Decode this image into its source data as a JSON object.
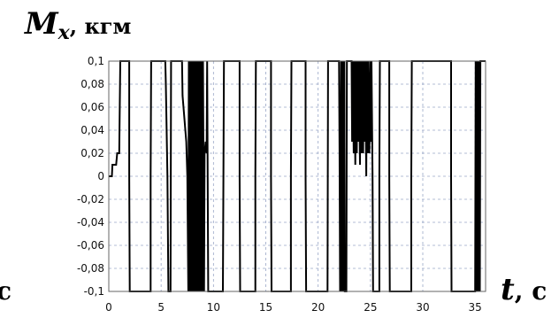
{
  "chart_data": {
    "type": "line",
    "title": "",
    "ylabel_symbol": "M",
    "ylabel_subscript": "x",
    "ylabel_unit": ", кгм",
    "xlabel_symbol": "t",
    "xlabel_unit": ", с",
    "left_cropped_text": "с",
    "xlim": [
      0,
      36
    ],
    "ylim": [
      -0.1,
      0.1
    ],
    "grid": true,
    "x_ticks": [
      0,
      5,
      10,
      15,
      20,
      25,
      30,
      35
    ],
    "x_tick_labels": [
      "0",
      "5",
      "10",
      "15",
      "20",
      "25",
      "30",
      "35"
    ],
    "y_ticks": [
      0.1,
      0.08,
      0.06,
      0.04,
      0.02,
      0,
      -0.02,
      -0.04,
      -0.06,
      -0.08,
      -0.1
    ],
    "y_tick_labels": [
      "0,1",
      "0,08",
      "0,06",
      "0,04",
      "0,02",
      "0",
      "-0,02",
      "-0,04",
      "-0,06",
      "-0,08",
      "-0,1"
    ],
    "series": [
      {
        "color": "#000000",
        "points": [
          [
            0,
            0
          ],
          [
            0.3,
            0
          ],
          [
            0.35,
            0.01
          ],
          [
            0.7,
            0.01
          ],
          [
            0.8,
            0.02
          ],
          [
            0.9,
            0.02
          ],
          [
            1.0,
            0.02
          ],
          [
            1.1,
            0.1
          ],
          [
            1.95,
            0.1
          ],
          [
            1.95,
            0
          ],
          [
            2.0,
            -0.1
          ],
          [
            4.0,
            -0.1
          ],
          [
            4.0,
            0
          ],
          [
            4.05,
            0.1
          ],
          [
            5.4,
            0.1
          ],
          [
            5.45,
            0.08
          ],
          [
            5.6,
            0
          ],
          [
            5.7,
            -0.1
          ],
          [
            5.9,
            -0.1
          ],
          [
            5.95,
            0.1
          ],
          [
            7.0,
            0.1
          ],
          [
            7.05,
            0.07
          ],
          [
            7.4,
            0.03
          ],
          [
            7.5,
            0
          ],
          [
            7.6,
            -0.1
          ],
          [
            7.65,
            0.1
          ],
          [
            7.75,
            -0.1
          ],
          [
            7.8,
            0.1
          ],
          [
            7.9,
            -0.1
          ],
          [
            7.95,
            0.1
          ],
          [
            8.05,
            -0.1
          ],
          [
            8.1,
            0.1
          ],
          [
            8.2,
            -0.1
          ],
          [
            8.25,
            0.1
          ],
          [
            8.35,
            -0.1
          ],
          [
            8.4,
            0.1
          ],
          [
            8.5,
            -0.1
          ],
          [
            8.55,
            0.1
          ],
          [
            8.65,
            -0.1
          ],
          [
            8.7,
            0.1
          ],
          [
            8.8,
            -0.1
          ],
          [
            8.85,
            0.1
          ],
          [
            8.95,
            -0.1
          ],
          [
            9.0,
            0.1
          ],
          [
            9.1,
            -0.1
          ],
          [
            9.15,
            0.02
          ],
          [
            9.25,
            0.03
          ],
          [
            9.35,
            0.02
          ],
          [
            9.4,
            0.1
          ],
          [
            9.45,
            0
          ],
          [
            9.5,
            -0.1
          ],
          [
            10.9,
            -0.1
          ],
          [
            11.0,
            0.1
          ],
          [
            12.5,
            0.1
          ],
          [
            12.5,
            0
          ],
          [
            12.55,
            -0.1
          ],
          [
            14.0,
            -0.1
          ],
          [
            14.0,
            0
          ],
          [
            14.05,
            0.1
          ],
          [
            15.5,
            0.1
          ],
          [
            15.5,
            0
          ],
          [
            15.55,
            -0.1
          ],
          [
            17.4,
            -0.1
          ],
          [
            17.4,
            0
          ],
          [
            17.45,
            0.1
          ],
          [
            18.8,
            0.1
          ],
          [
            18.8,
            0
          ],
          [
            18.85,
            -0.1
          ],
          [
            20.9,
            -0.1
          ],
          [
            20.95,
            0.1
          ],
          [
            22.0,
            0.1
          ],
          [
            22.05,
            0.02
          ],
          [
            22.1,
            -0.1
          ],
          [
            22.2,
            0.1
          ],
          [
            22.25,
            -0.1
          ],
          [
            22.35,
            0.1
          ],
          [
            22.4,
            -0.1
          ],
          [
            22.5,
            0.1
          ],
          [
            22.55,
            -0.1
          ],
          [
            22.7,
            -0.1
          ],
          [
            22.75,
            0.1
          ],
          [
            23.2,
            0.1
          ],
          [
            23.25,
            0.03
          ],
          [
            23.3,
            0.1
          ],
          [
            23.4,
            0.02
          ],
          [
            23.45,
            0.1
          ],
          [
            23.55,
            0.01
          ],
          [
            23.6,
            0.1
          ],
          [
            23.7,
            0.02
          ],
          [
            23.75,
            0.1
          ],
          [
            23.85,
            0.03
          ],
          [
            23.9,
            0.1
          ],
          [
            24.0,
            0.01
          ],
          [
            24.05,
            0.1
          ],
          [
            24.15,
            0.02
          ],
          [
            24.2,
            0.1
          ],
          [
            24.3,
            0.02
          ],
          [
            24.35,
            0.1
          ],
          [
            24.45,
            0.03
          ],
          [
            24.5,
            0.1
          ],
          [
            24.6,
            0.0
          ],
          [
            24.65,
            0.1
          ],
          [
            24.75,
            0.02
          ],
          [
            24.8,
            0.1
          ],
          [
            24.9,
            0.02
          ],
          [
            25.0,
            0.1
          ],
          [
            25.05,
            0.03
          ],
          [
            25.1,
            0.1
          ],
          [
            25.2,
            0
          ],
          [
            25.25,
            -0.1
          ],
          [
            25.85,
            -0.1
          ],
          [
            25.85,
            0
          ],
          [
            25.9,
            0.1
          ],
          [
            26.8,
            0.1
          ],
          [
            26.8,
            0
          ],
          [
            26.85,
            -0.1
          ],
          [
            28.9,
            -0.1
          ],
          [
            28.9,
            0
          ],
          [
            28.95,
            0.1
          ],
          [
            32.7,
            0.1
          ],
          [
            32.7,
            0
          ],
          [
            32.75,
            -0.1
          ],
          [
            35.0,
            -0.1
          ],
          [
            35.05,
            0.1
          ],
          [
            35.15,
            -0.1
          ],
          [
            35.2,
            0.1
          ],
          [
            35.3,
            -0.1
          ],
          [
            35.35,
            0.1
          ],
          [
            35.45,
            -0.1
          ],
          [
            35.5,
            0.1
          ],
          [
            36,
            0.1
          ]
        ]
      }
    ]
  }
}
